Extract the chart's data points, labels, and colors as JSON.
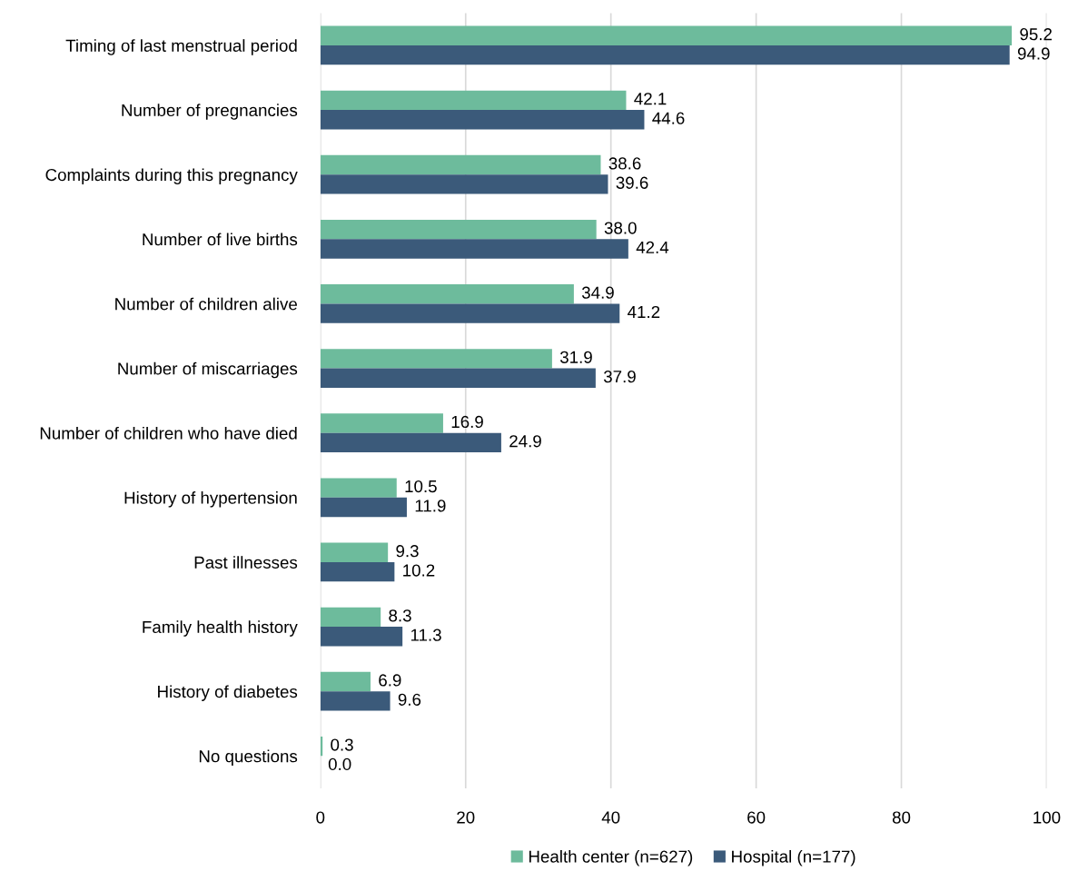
{
  "chart_data": {
    "type": "bar",
    "orientation": "horizontal",
    "categories": [
      "Timing of last menstrual period",
      "Number of pregnancies",
      "Complaints during this pregnancy",
      "Number of live births",
      "Number of children alive",
      "Number of miscarriages",
      "Number of children who have died",
      "History of hypertension",
      "Past illnesses",
      "Family health history",
      "History of diabetes",
      "No questions"
    ],
    "series": [
      {
        "name": "Health center (n=627)",
        "color": "#6dbb9c",
        "values": [
          95.2,
          42.1,
          38.6,
          38.0,
          34.9,
          31.9,
          16.9,
          10.5,
          9.3,
          8.3,
          6.9,
          0.3
        ],
        "value_labels": [
          "95.2",
          "42.1",
          "38.6",
          "38.0",
          "34.9",
          "31.9",
          "16.9",
          "10.5",
          "9.3",
          "8.3",
          "6.9",
          "0.3"
        ]
      },
      {
        "name": "Hospital (n=177)",
        "color": "#3b5a7a",
        "values": [
          94.9,
          44.6,
          39.6,
          42.4,
          41.2,
          37.9,
          24.9,
          11.9,
          10.2,
          11.3,
          9.6,
          0.0
        ],
        "value_labels": [
          "94.9",
          "44.6",
          "39.6",
          "42.4",
          "41.2",
          "37.9",
          "24.9",
          "11.9",
          "10.2",
          "11.3",
          "9.6",
          "0.0"
        ]
      }
    ],
    "xlim": [
      0,
      100
    ],
    "xticks": [
      0,
      20,
      40,
      60,
      80,
      100
    ],
    "grid": "x",
    "legend": "bottom"
  }
}
